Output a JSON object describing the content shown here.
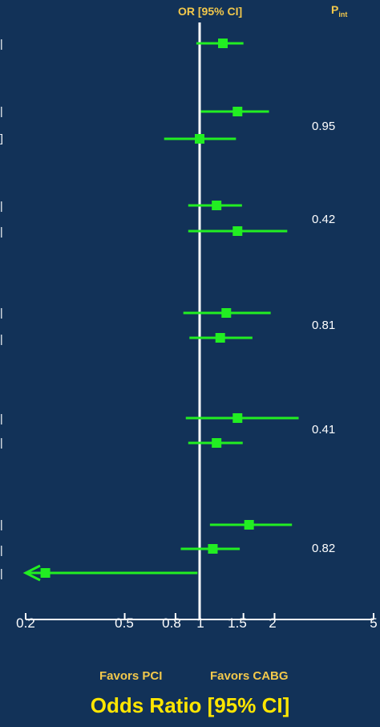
{
  "header": {
    "or_label": "OR [95% CI]",
    "pint_label": "P",
    "pint_sub": "int"
  },
  "chart_data": {
    "type": "forest",
    "xscale": "log",
    "xlim": [
      0.2,
      5
    ],
    "reference_line": 1,
    "xticks": [
      {
        "value": 0.2,
        "label": "0.2"
      },
      {
        "value": 0.5,
        "label": "0.5"
      },
      {
        "value": 0.8,
        "label": "0.8"
      },
      {
        "value": 1,
        "label": "1"
      },
      {
        "value": 1.5,
        "label": "1.5"
      },
      {
        "value": 2,
        "label": "2"
      },
      {
        "value": 5,
        "label": "5"
      }
    ],
    "xlabel": "Odds Ratio [95% CI]",
    "favors_left": "Favors PCI",
    "favors_right": "Favors CABG",
    "rows": [
      {
        "or": 1.24,
        "lo": 0.97,
        "hi": 1.5
      },
      {
        "or": 1.42,
        "lo": 1.01,
        "hi": 1.9
      },
      {
        "or": 1.0,
        "lo": 0.72,
        "hi": 1.4
      },
      {
        "or": 1.17,
        "lo": 0.9,
        "hi": 1.48
      },
      {
        "or": 1.42,
        "lo": 0.9,
        "hi": 2.25
      },
      {
        "or": 1.28,
        "lo": 0.86,
        "hi": 1.93
      },
      {
        "or": 1.21,
        "lo": 0.91,
        "hi": 1.63
      },
      {
        "or": 1.42,
        "lo": 0.88,
        "hi": 2.5
      },
      {
        "or": 1.17,
        "lo": 0.9,
        "hi": 1.49
      },
      {
        "or": 1.58,
        "lo": 1.1,
        "hi": 2.35
      },
      {
        "or": 1.13,
        "lo": 0.84,
        "hi": 1.45
      },
      {
        "or": 0.24,
        "lo": 0.2,
        "hi": 0.98,
        "arrow_left": true
      }
    ],
    "p_interaction": [
      "0.95",
      "0.42",
      "0.81",
      "0.41",
      "0.82"
    ]
  },
  "colors": {
    "background": "#123258",
    "marker": "#22ee22",
    "axis": "#ffffff",
    "accent": "#f2c84b",
    "xlabel": "#ffe600"
  }
}
